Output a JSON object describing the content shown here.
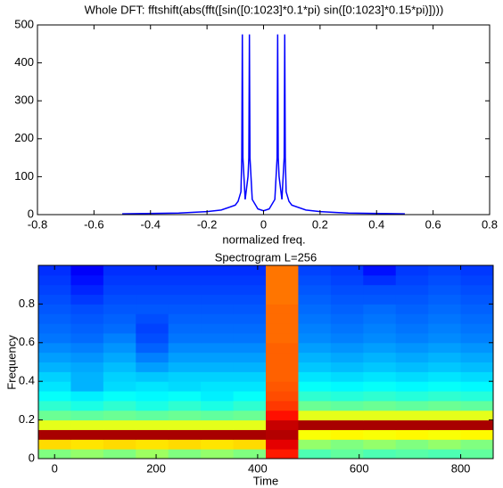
{
  "chart_data": [
    {
      "type": "line",
      "title": "Whole DFT: fftshift(abs(fft([sin([0:1023]*0.1*pi) sin([0:1023]*0.15*pi)])))",
      "xlabel": "normalized freq.",
      "xlim": [
        -0.8,
        0.8
      ],
      "xticks": [
        -0.8,
        -0.6,
        -0.4,
        -0.2,
        0,
        0.2,
        0.4,
        0.6,
        0.8
      ],
      "ylim": [
        0,
        500
      ],
      "yticks": [
        0,
        100,
        200,
        300,
        400,
        500
      ],
      "grid": false,
      "x": [
        -0.5,
        -0.3,
        -0.2,
        -0.15,
        -0.1,
        -0.09,
        -0.08,
        -0.077,
        -0.075,
        -0.073,
        -0.065,
        -0.055,
        -0.052,
        -0.05,
        -0.048,
        -0.04,
        -0.02,
        0,
        0.02,
        0.04,
        0.048,
        0.05,
        0.052,
        0.055,
        0.065,
        0.073,
        0.075,
        0.077,
        0.08,
        0.09,
        0.1,
        0.15,
        0.2,
        0.3,
        0.5
      ],
      "series": [
        {
          "color": "#0000ff",
          "values": [
            2,
            4,
            8,
            12,
            25,
            35,
            60,
            150,
            475,
            150,
            40,
            100,
            150,
            475,
            150,
            40,
            15,
            10,
            15,
            40,
            150,
            475,
            150,
            100,
            40,
            150,
            475,
            150,
            60,
            35,
            25,
            12,
            8,
            4,
            2
          ]
        }
      ]
    },
    {
      "type": "heatmap",
      "title": "Spectrogram L=256",
      "xlabel": "Time",
      "ylabel": "Frequency",
      "xlim": [
        -32,
        864
      ],
      "xticks": [
        0,
        200,
        400,
        600,
        800
      ],
      "ylim": [
        0,
        1
      ],
      "yticks": [
        0,
        0.2,
        0.4,
        0.6,
        0.8
      ],
      "zlim": [
        0,
        1
      ],
      "x": [
        0,
        64,
        128,
        192,
        256,
        320,
        384,
        448,
        512,
        576,
        640,
        704,
        768,
        832
      ],
      "y": [
        0.025,
        0.075,
        0.125,
        0.175,
        0.225,
        0.275,
        0.325,
        0.375,
        0.425,
        0.475,
        0.525,
        0.575,
        0.625,
        0.675,
        0.725,
        0.775,
        0.825,
        0.875,
        0.925,
        0.975
      ],
      "z": [
        [
          0.5,
          0.52,
          0.5,
          0.53,
          0.5,
          0.52,
          0.5,
          0.85,
          0.45,
          0.47,
          0.45,
          0.46,
          0.45,
          0.47
        ],
        [
          0.66,
          0.65,
          0.66,
          0.65,
          0.66,
          0.65,
          0.66,
          0.9,
          0.52,
          0.5,
          0.52,
          0.5,
          0.52,
          0.5
        ],
        [
          0.96,
          0.96,
          0.96,
          0.96,
          0.96,
          0.96,
          0.96,
          0.95,
          0.62,
          0.63,
          0.62,
          0.63,
          0.62,
          0.63
        ],
        [
          0.6,
          0.6,
          0.6,
          0.6,
          0.6,
          0.6,
          0.6,
          0.93,
          0.96,
          0.96,
          0.96,
          0.96,
          0.96,
          0.96
        ],
        [
          0.48,
          0.47,
          0.48,
          0.47,
          0.48,
          0.47,
          0.48,
          0.86,
          0.6,
          0.6,
          0.6,
          0.6,
          0.6,
          0.6
        ],
        [
          0.42,
          0.4,
          0.42,
          0.4,
          0.42,
          0.4,
          0.42,
          0.82,
          0.48,
          0.47,
          0.48,
          0.47,
          0.48,
          0.47
        ],
        [
          0.38,
          0.36,
          0.38,
          0.37,
          0.38,
          0.36,
          0.38,
          0.8,
          0.42,
          0.41,
          0.42,
          0.41,
          0.42,
          0.41
        ],
        [
          0.35,
          0.3,
          0.34,
          0.35,
          0.34,
          0.35,
          0.35,
          0.79,
          0.38,
          0.37,
          0.38,
          0.37,
          0.38,
          0.37
        ],
        [
          0.33,
          0.3,
          0.33,
          0.32,
          0.33,
          0.33,
          0.33,
          0.78,
          0.35,
          0.34,
          0.35,
          0.34,
          0.35,
          0.34
        ],
        [
          0.3,
          0.29,
          0.31,
          0.28,
          0.3,
          0.3,
          0.3,
          0.78,
          0.32,
          0.31,
          0.32,
          0.31,
          0.32,
          0.31
        ],
        [
          0.28,
          0.27,
          0.29,
          0.25,
          0.28,
          0.28,
          0.28,
          0.78,
          0.3,
          0.29,
          0.3,
          0.29,
          0.3,
          0.29
        ],
        [
          0.26,
          0.25,
          0.27,
          0.22,
          0.26,
          0.26,
          0.26,
          0.78,
          0.28,
          0.27,
          0.28,
          0.27,
          0.28,
          0.27
        ],
        [
          0.24,
          0.23,
          0.25,
          0.2,
          0.24,
          0.24,
          0.24,
          0.77,
          0.26,
          0.25,
          0.26,
          0.25,
          0.26,
          0.25
        ],
        [
          0.23,
          0.22,
          0.23,
          0.19,
          0.23,
          0.23,
          0.23,
          0.77,
          0.25,
          0.24,
          0.25,
          0.24,
          0.25,
          0.24
        ],
        [
          0.22,
          0.21,
          0.22,
          0.2,
          0.22,
          0.22,
          0.22,
          0.77,
          0.24,
          0.23,
          0.24,
          0.23,
          0.24,
          0.23
        ],
        [
          0.21,
          0.2,
          0.21,
          0.21,
          0.21,
          0.21,
          0.21,
          0.77,
          0.23,
          0.22,
          0.23,
          0.22,
          0.23,
          0.22
        ],
        [
          0.2,
          0.18,
          0.2,
          0.2,
          0.2,
          0.2,
          0.2,
          0.76,
          0.22,
          0.21,
          0.21,
          0.21,
          0.22,
          0.21
        ],
        [
          0.19,
          0.16,
          0.19,
          0.19,
          0.19,
          0.19,
          0.19,
          0.76,
          0.21,
          0.2,
          0.2,
          0.2,
          0.21,
          0.2
        ],
        [
          0.18,
          0.14,
          0.18,
          0.18,
          0.18,
          0.18,
          0.18,
          0.76,
          0.2,
          0.19,
          0.17,
          0.19,
          0.2,
          0.19
        ],
        [
          0.17,
          0.12,
          0.17,
          0.17,
          0.17,
          0.17,
          0.17,
          0.76,
          0.19,
          0.18,
          0.14,
          0.18,
          0.19,
          0.18
        ]
      ]
    }
  ]
}
